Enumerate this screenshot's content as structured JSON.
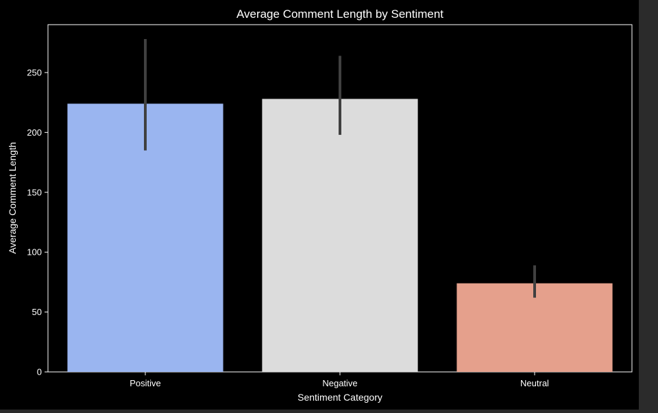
{
  "chart_data": {
    "type": "bar",
    "title": "Average Comment Length by Sentiment",
    "xlabel": "Sentiment Category",
    "ylabel": "Average Comment Length",
    "categories": [
      "Positive",
      "Negative",
      "Neutral"
    ],
    "values": [
      224,
      228,
      74
    ],
    "error_bars": [
      {
        "low": 185,
        "high": 278
      },
      {
        "low": 198,
        "high": 264
      },
      {
        "low": 62,
        "high": 89
      }
    ],
    "ylim": [
      0,
      290
    ],
    "yticks": [
      0,
      50,
      100,
      150,
      200,
      250
    ],
    "colors": {
      "bars": [
        "#9ab5f0",
        "#dcdcdc",
        "#e5a08c"
      ],
      "error_bar": "#404040",
      "background": "#000000",
      "axes": "#ffffff",
      "text": "#ffffff"
    },
    "grid": false,
    "legend": "none"
  }
}
